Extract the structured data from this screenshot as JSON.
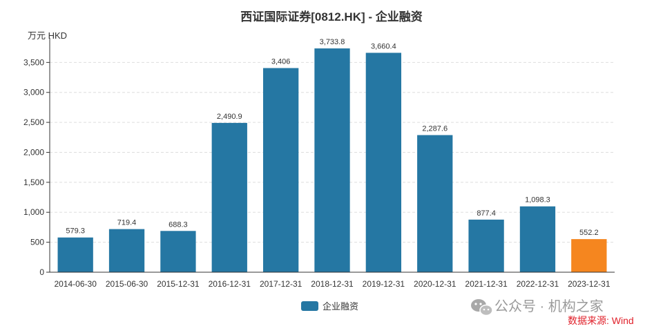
{
  "chart_data": {
    "type": "bar",
    "title": "西证国际证券[0812.HK] - 企业融资",
    "unit_label": "万元  HKD",
    "categories": [
      "2014-06-30",
      "2015-06-30",
      "2015-12-31",
      "2016-12-31",
      "2017-12-31",
      "2018-12-31",
      "2019-12-31",
      "2020-12-31",
      "2021-12-31",
      "2022-12-31",
      "2023-12-31"
    ],
    "series": [
      {
        "name": "企业融资",
        "values": [
          579.3,
          719.4,
          688.3,
          2490.9,
          3406,
          3733.8,
          3660.4,
          2287.6,
          877.4,
          1098.3,
          552.2
        ],
        "labels": [
          "579.3",
          "719.4",
          "688.3",
          "2,490.9",
          "3,406",
          "3,733.8",
          "3,660.4",
          "2,287.6",
          "877.4",
          "1,098.3",
          "552.2"
        ]
      }
    ],
    "yticks": [
      "0",
      "500",
      "1,000",
      "1,500",
      "2,000",
      "2,500",
      "3,000",
      "3,500"
    ],
    "ylim": [
      0,
      3850
    ],
    "grid": true,
    "legend_position": "bottom-center",
    "colors": {
      "bar": "#2577a3",
      "highlight": "#f5861f"
    },
    "highlight_index": 10
  },
  "watermark": "公众号 · 机构之家",
  "source": "数据来源: Wind"
}
